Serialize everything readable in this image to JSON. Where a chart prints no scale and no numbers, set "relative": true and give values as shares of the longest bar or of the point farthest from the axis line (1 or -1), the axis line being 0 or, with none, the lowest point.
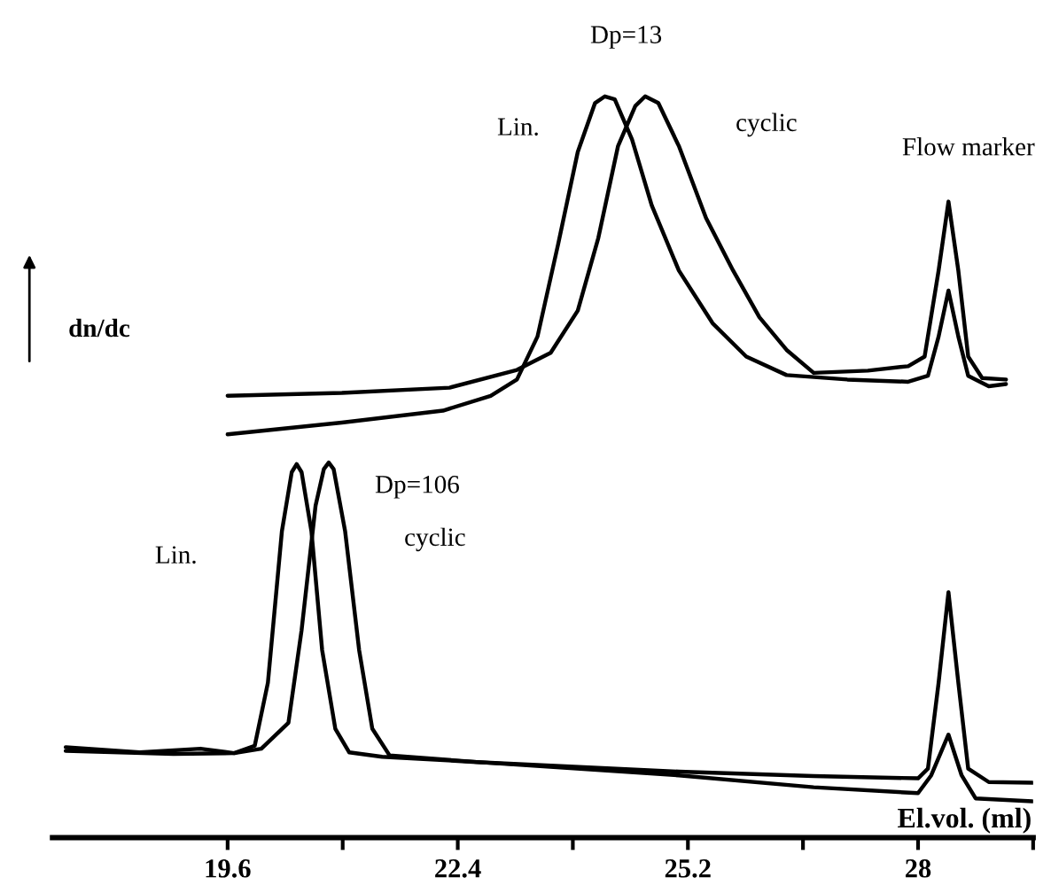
{
  "chart_data": {
    "type": "line",
    "relative": true,
    "xlabel": "El.vol. (ml)",
    "ylabel": "dn/dc",
    "xlim": [
      17.47,
      29.4
    ],
    "xticks": [
      19.6,
      {
        "value": 21.0,
        "label": null
      },
      22.4,
      {
        "value": 23.8,
        "label": null
      },
      25.2,
      {
        "value": 26.6,
        "label": null
      },
      28,
      {
        "value": 29.4,
        "label": null
      }
    ],
    "series": [
      {
        "color": "#000000",
        "x": [
          19.6,
          20.99,
          22.22,
          22.8,
          23.12,
          23.37,
          23.62,
          23.86,
          24.07,
          24.19,
          24.31,
          24.52,
          24.76,
          25.09,
          25.5,
          25.91,
          26.4,
          27.14,
          27.88,
          28.12,
          28.25,
          28.37,
          28.49,
          28.61,
          28.86,
          29.07
        ],
        "values": [
          0.544,
          0.56,
          0.576,
          0.596,
          0.618,
          0.676,
          0.8,
          0.925,
          0.991,
          1.0,
          0.996,
          0.942,
          0.853,
          0.765,
          0.694,
          0.649,
          0.624,
          0.618,
          0.615,
          0.623,
          0.676,
          0.738,
          0.676,
          0.623,
          0.609,
          0.612
        ]
      },
      {
        "color": "#000000",
        "x": [
          19.6,
          20.99,
          22.3,
          23.12,
          23.53,
          23.86,
          24.11,
          24.35,
          24.56,
          24.68,
          24.84,
          25.09,
          25.42,
          25.75,
          26.07,
          26.4,
          26.73,
          27.39,
          27.88,
          28.08,
          28.25,
          28.37,
          28.49,
          28.61,
          28.78,
          29.07
        ],
        "values": [
          0.596,
          0.6,
          0.607,
          0.631,
          0.654,
          0.711,
          0.809,
          0.933,
          0.987,
          1.0,
          0.991,
          0.933,
          0.836,
          0.765,
          0.702,
          0.658,
          0.627,
          0.63,
          0.636,
          0.649,
          0.765,
          0.858,
          0.765,
          0.649,
          0.62,
          0.618
        ]
      },
      {
        "color": "#000000",
        "x": [
          17.63,
          18.53,
          19.27,
          19.68,
          19.93,
          20.09,
          20.26,
          20.38,
          20.44,
          20.5,
          20.62,
          20.75,
          20.91,
          21.08,
          21.48,
          22.63,
          25.09,
          26.73,
          28.0,
          28.12,
          28.25,
          28.37,
          28.49,
          28.61,
          28.86,
          29.39
        ],
        "values": [
          0.122,
          0.115,
          0.12,
          0.114,
          0.124,
          0.209,
          0.413,
          0.493,
          0.504,
          0.493,
          0.413,
          0.253,
          0.147,
          0.115,
          0.109,
          0.102,
          0.089,
          0.083,
          0.08,
          0.093,
          0.209,
          0.331,
          0.209,
          0.093,
          0.075,
          0.074
        ]
      },
      {
        "color": "#000000",
        "x": [
          17.63,
          18.94,
          19.68,
          20.01,
          20.34,
          20.5,
          20.67,
          20.77,
          20.83,
          20.89,
          21.03,
          21.2,
          21.36,
          21.57,
          22.63,
          25.09,
          26.73,
          28.0,
          28.16,
          28.37,
          28.53,
          28.7,
          29.39
        ],
        "values": [
          0.117,
          0.113,
          0.114,
          0.12,
          0.155,
          0.28,
          0.448,
          0.497,
          0.506,
          0.497,
          0.413,
          0.253,
          0.147,
          0.111,
          0.102,
          0.084,
          0.068,
          0.06,
          0.084,
          0.139,
          0.084,
          0.053,
          0.049
        ]
      }
    ],
    "annotations": [
      "Dp=13",
      "Lin.",
      "cyclic",
      "Flow marker",
      "Dp=106",
      "cyclic",
      "Lin."
    ]
  }
}
